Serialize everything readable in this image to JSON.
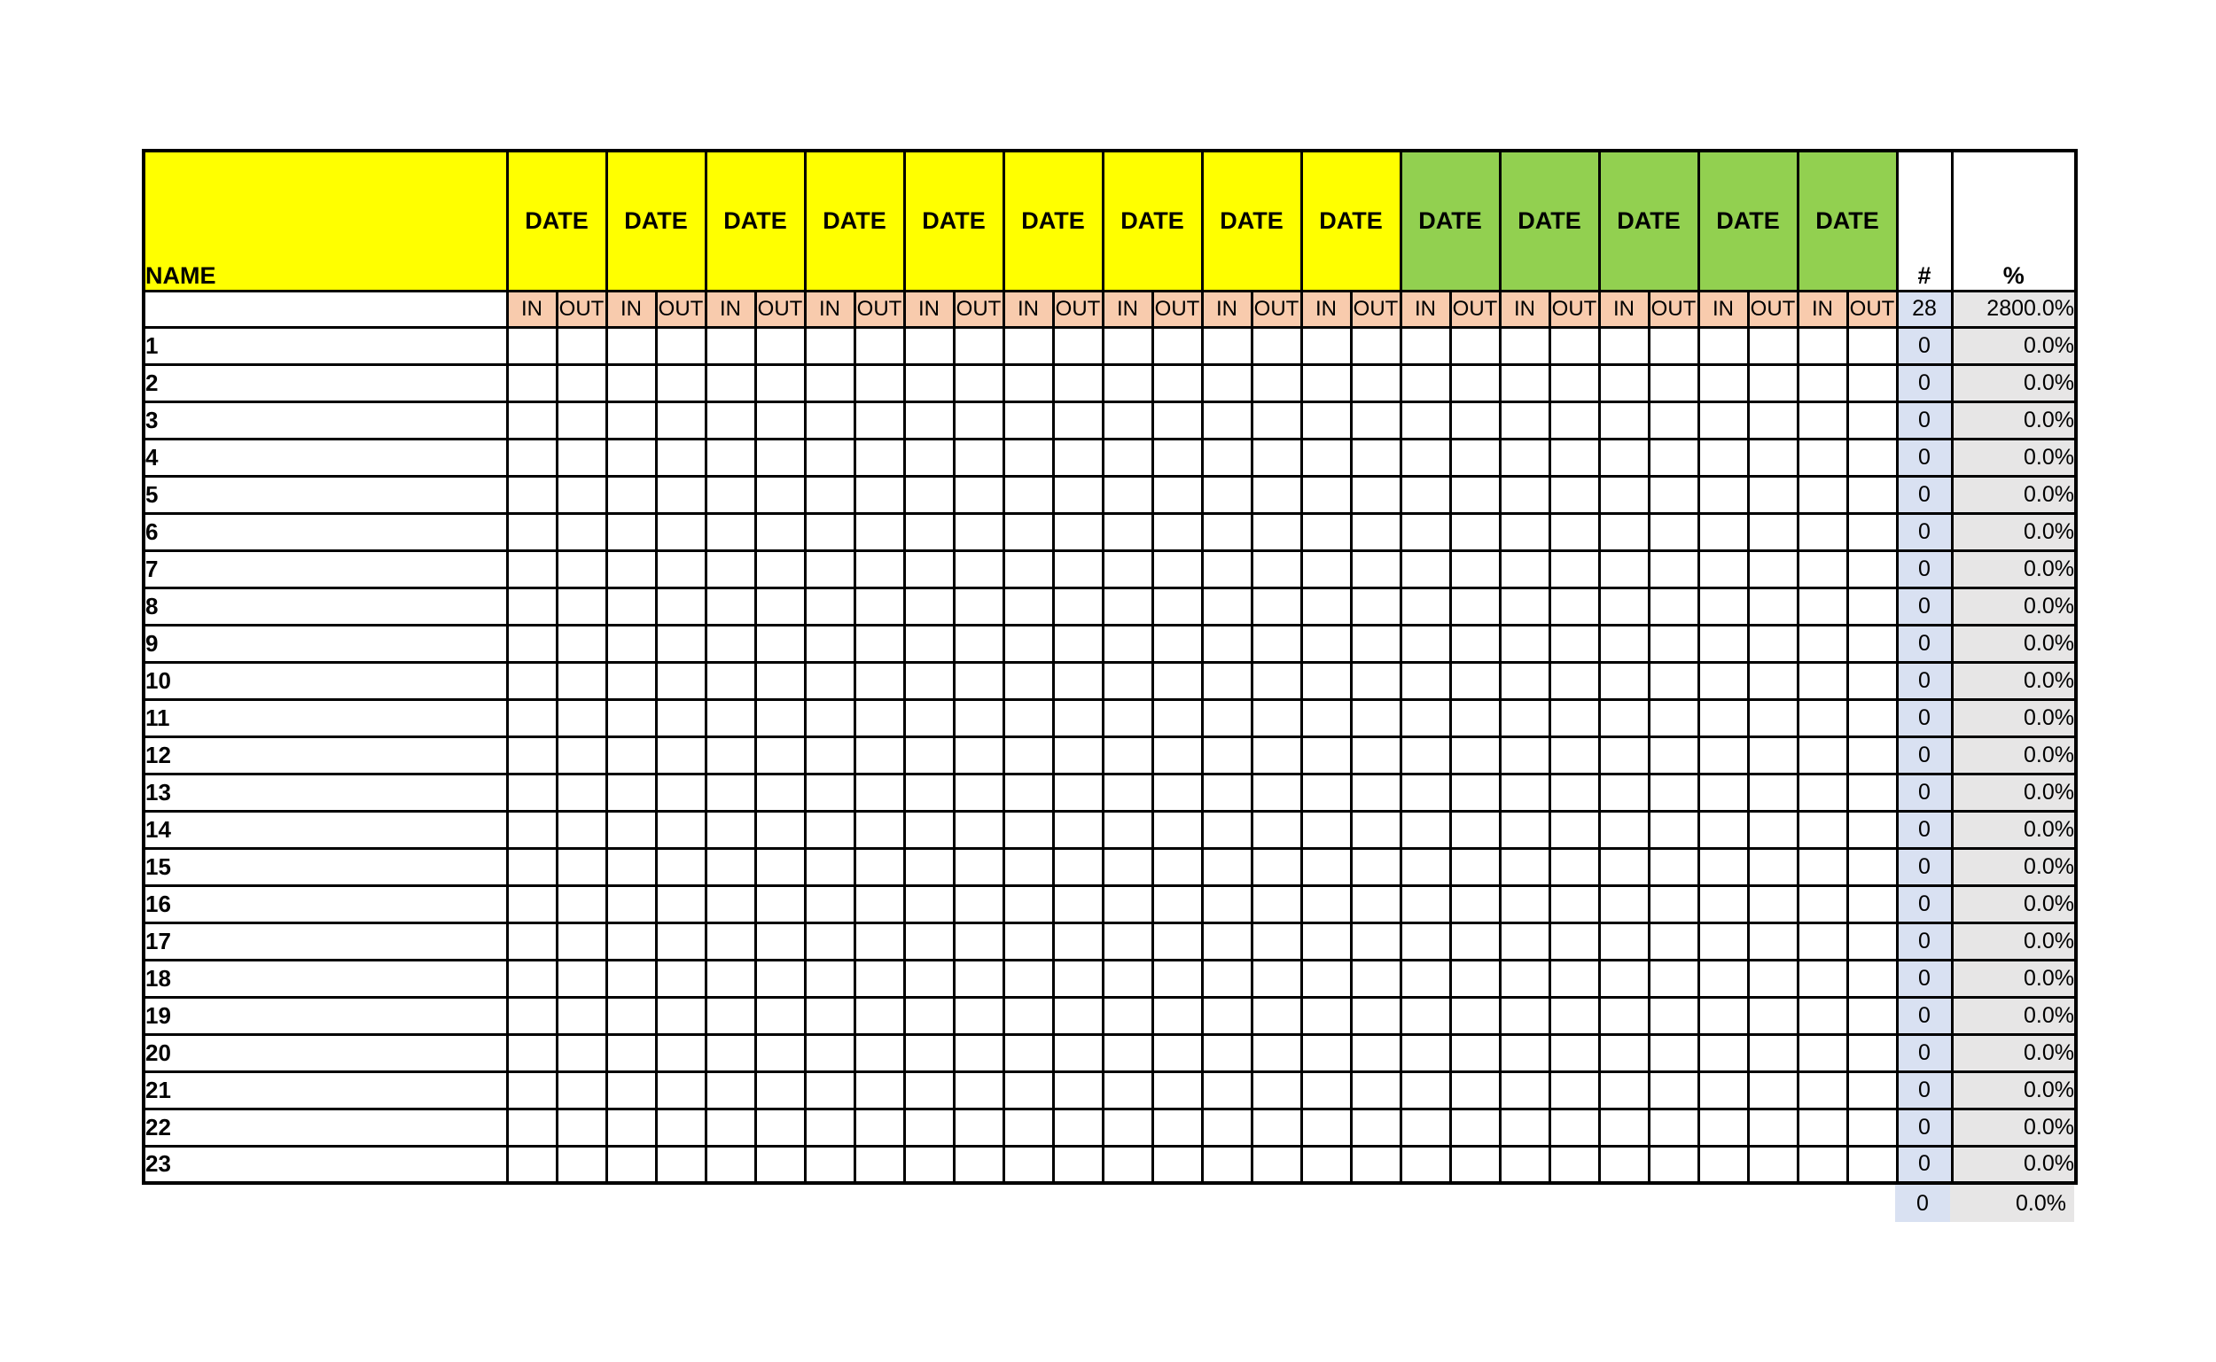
{
  "table": {
    "name_header": "NAME",
    "date_header_label": "DATE",
    "in_label": "IN",
    "out_label": "OUT",
    "count_header": "#",
    "percent_header": "%",
    "date_columns": [
      "yellow",
      "yellow",
      "yellow",
      "yellow",
      "yellow",
      "yellow",
      "yellow",
      "yellow",
      "yellow",
      "green",
      "green",
      "green",
      "green",
      "green"
    ],
    "totals": {
      "count": "28",
      "percent": "2800.0%"
    },
    "rows": [
      {
        "label": "1",
        "count": "0",
        "percent": "0.0%"
      },
      {
        "label": "2",
        "count": "0",
        "percent": "0.0%"
      },
      {
        "label": "3",
        "count": "0",
        "percent": "0.0%"
      },
      {
        "label": "4",
        "count": "0",
        "percent": "0.0%"
      },
      {
        "label": "5",
        "count": "0",
        "percent": "0.0%"
      },
      {
        "label": "6",
        "count": "0",
        "percent": "0.0%"
      },
      {
        "label": "7",
        "count": "0",
        "percent": "0.0%"
      },
      {
        "label": "8",
        "count": "0",
        "percent": "0.0%"
      },
      {
        "label": "9",
        "count": "0",
        "percent": "0.0%"
      },
      {
        "label": "10",
        "count": "0",
        "percent": "0.0%"
      },
      {
        "label": "11",
        "count": "0",
        "percent": "0.0%"
      },
      {
        "label": "12",
        "count": "0",
        "percent": "0.0%"
      },
      {
        "label": "13",
        "count": "0",
        "percent": "0.0%"
      },
      {
        "label": "14",
        "count": "0",
        "percent": "0.0%"
      },
      {
        "label": "15",
        "count": "0",
        "percent": "0.0%"
      },
      {
        "label": "16",
        "count": "0",
        "percent": "0.0%"
      },
      {
        "label": "17",
        "count": "0",
        "percent": "0.0%"
      },
      {
        "label": "18",
        "count": "0",
        "percent": "0.0%"
      },
      {
        "label": "19",
        "count": "0",
        "percent": "0.0%"
      },
      {
        "label": "20",
        "count": "0",
        "percent": "0.0%"
      },
      {
        "label": "21",
        "count": "0",
        "percent": "0.0%"
      },
      {
        "label": "22",
        "count": "0",
        "percent": "0.0%"
      },
      {
        "label": "23",
        "count": "0",
        "percent": "0.0%"
      }
    ],
    "footer": {
      "count": "0",
      "percent": "0.0%"
    },
    "colors": {
      "yellow": "#FFFF00",
      "green": "#92D050",
      "peach": "#F8CBAD",
      "count_bg": "#D9E1F2",
      "percent_bg": "#E7E6E6",
      "border": "#000000"
    },
    "layout_widths": {
      "name": 410,
      "inout": 56,
      "count": 62,
      "percent": 140
    }
  }
}
